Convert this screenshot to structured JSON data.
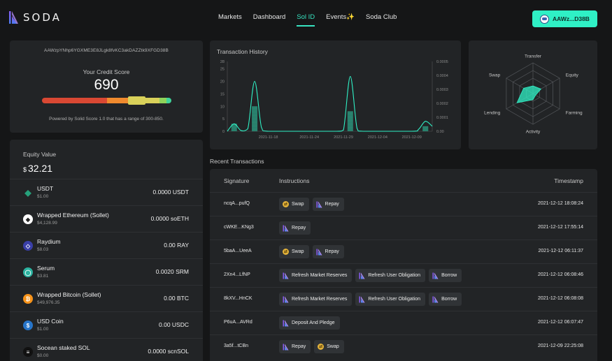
{
  "app": {
    "logo_text": "SODA"
  },
  "nav": {
    "items": [
      {
        "label": "Markets",
        "active": false
      },
      {
        "label": "Dashboard",
        "active": false
      },
      {
        "label": "Sol ID",
        "active": true
      },
      {
        "label": "Events✨",
        "active": false
      },
      {
        "label": "Soda Club",
        "active": false
      }
    ]
  },
  "wallet": {
    "label": "AAWz...D38B"
  },
  "credit": {
    "address": "AAWzpYNhp6YGXME3E8JLgk8fvKC3akDAZZtk9XFGD38B",
    "label": "Your Credit Score",
    "score": "690",
    "footnote": "Powered by Solid Score 1.0 that has a range of 300-850.",
    "range": [
      300,
      850
    ],
    "segment_colors": [
      "#d94833",
      "#f08a2e",
      "#f4b23b",
      "#d9d15a",
      "#8fd25a",
      "#3fd49a"
    ]
  },
  "equity": {
    "label": "Equity Value",
    "currency": "$",
    "value": "32.21",
    "tokens": [
      {
        "name": "USDT",
        "price": "$1.00",
        "balance": "0.0000 USDT",
        "icon": "tether-icon",
        "color": "#26a17b"
      },
      {
        "name": "Wrapped Ethereum (Sollet)",
        "price": "$4,128.99",
        "balance": "0.0000 soETH",
        "icon": "ethereum-icon",
        "color": "#ffffff"
      },
      {
        "name": "Raydium",
        "price": "$8.03",
        "balance": "0.00 RAY",
        "icon": "raydium-icon",
        "color": "#3a3fa8"
      },
      {
        "name": "Serum",
        "price": "$3.81",
        "balance": "0.0020 SRM",
        "icon": "serum-icon",
        "color": "#2bb3a0"
      },
      {
        "name": "Wrapped Bitcoin (Sollet)",
        "price": "$49,976.35",
        "balance": "0.00 BTC",
        "icon": "bitcoin-icon",
        "color": "#f7931a"
      },
      {
        "name": "USD Coin",
        "price": "$1.00",
        "balance": "0.00 USDC",
        "icon": "usdc-icon",
        "color": "#2775ca"
      },
      {
        "name": "Socean staked SOL",
        "price": "$0.00",
        "balance": "0.0000 scnSOL",
        "icon": "socean-icon",
        "color": "#111111"
      }
    ]
  },
  "chart_data": [
    {
      "type": "bar",
      "title": "Transaction History",
      "categories": [
        "2021-11-18",
        "2021-11-24",
        "2021-11-29",
        "2021-12-04",
        "2021-12-09"
      ],
      "y_ticks": [
        0,
        5,
        10,
        15,
        20,
        25,
        28
      ],
      "y2_ticks": [
        "0.00",
        "0.0001",
        "0.0002",
        "0.0003",
        "0.0004",
        "0.0005"
      ],
      "ylim": [
        0,
        28
      ],
      "y2lim": [
        0,
        0.0005
      ],
      "x_range": [
        0,
        30
      ],
      "x_tick_positions": [
        6,
        12,
        17,
        22,
        27
      ],
      "bars": [
        {
          "x": 1,
          "value": 3
        },
        {
          "x": 4,
          "value": 10
        },
        {
          "x": 18,
          "value": 8
        },
        {
          "x": 29,
          "value": 2
        }
      ],
      "line": [
        {
          "x": 0,
          "value": 0
        },
        {
          "x": 1,
          "value": 3
        },
        {
          "x": 2,
          "value": 0.3
        },
        {
          "x": 3,
          "value": 1
        },
        {
          "x": 4,
          "value": 20
        },
        {
          "x": 5,
          "value": 1.5
        },
        {
          "x": 6,
          "value": 0
        },
        {
          "x": 12,
          "value": 0
        },
        {
          "x": 16,
          "value": 0
        },
        {
          "x": 17,
          "value": 0.5
        },
        {
          "x": 18,
          "value": 22
        },
        {
          "x": 19,
          "value": 1
        },
        {
          "x": 20,
          "value": 0
        },
        {
          "x": 27,
          "value": 0
        },
        {
          "x": 28,
          "value": 0.8
        },
        {
          "x": 29,
          "value": 4
        },
        {
          "x": 30,
          "value": 2
        }
      ],
      "bar_color": "#2c8a74",
      "line_color": "#2ff0c5",
      "grid": false
    },
    {
      "type": "radar",
      "axes": [
        "Transfer",
        "Equity",
        "Farming",
        "Activity",
        "Lending",
        "Swap"
      ],
      "values": [
        0.25,
        0.3,
        0.1,
        0.2,
        0.6,
        0.35
      ],
      "max": 1,
      "fill_color": "#2ff0c5"
    }
  ],
  "recent": {
    "title": "Recent Transactions",
    "columns": {
      "signature": "Signature",
      "instructions": "Instructions",
      "timestamp": "Timestamp"
    },
    "rows": [
      {
        "sig": "ncqA...pufQ",
        "ins": [
          "Swap",
          "Repay"
        ],
        "time": "2021-12-12 18:08:24"
      },
      {
        "sig": "cWKE...KNg3",
        "ins": [
          "Repay"
        ],
        "time": "2021-12-12 17:55:14"
      },
      {
        "sig": "5baA...UeeA",
        "ins": [
          "Swap",
          "Repay"
        ],
        "time": "2021-12-12 06:11:37"
      },
      {
        "sig": "2Xn4...LfNP",
        "ins": [
          "Refresh Market Reserves",
          "Refresh User Obligation",
          "Borrow"
        ],
        "time": "2021-12-12 06:08:46"
      },
      {
        "sig": "8kXV...HnCK",
        "ins": [
          "Refresh Market Reserves",
          "Refresh User Obligation",
          "Borrow"
        ],
        "time": "2021-12-12 06:08:08"
      },
      {
        "sig": "P6uA...AVRd",
        "ins": [
          "Deposit And Pledge"
        ],
        "time": "2021-12-12 06:07:47"
      },
      {
        "sig": "3a5f...tCBn",
        "ins": [
          "Repay",
          "Swap"
        ],
        "time": "2021-12-09 22:25:08"
      }
    ]
  }
}
